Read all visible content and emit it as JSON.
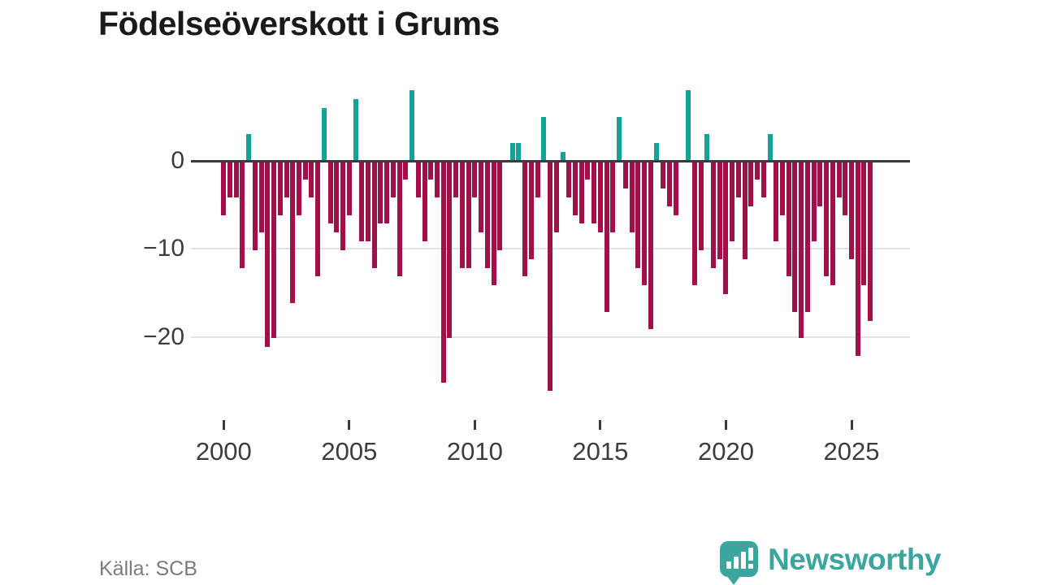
{
  "title": "Födelseöverskott i Grums",
  "source": "Källa: SCB",
  "branding": {
    "name": "Newsworthy"
  },
  "colors": {
    "positive": "#16a29a",
    "negative": "#a11048",
    "zero_line": "#3b3b3b",
    "gridline": "#e2e2e2",
    "axis_text": "#3c3c3c",
    "title_text": "#1a1a1a",
    "source_text": "#7b7b7b",
    "brand_teal": "#3aa69d"
  },
  "chart_data": {
    "type": "bar",
    "title": "Födelseöverskott i Grums",
    "xlabel": "",
    "ylabel": "",
    "x_unit": "quarter",
    "grid": "horizontal",
    "ylim": [
      -27,
      9
    ],
    "categories": [
      "2000K1",
      "2000K2",
      "2000K3",
      "2000K4",
      "2001K1",
      "2001K2",
      "2001K3",
      "2001K4",
      "2002K1",
      "2002K2",
      "2002K3",
      "2002K4",
      "2003K1",
      "2003K2",
      "2003K3",
      "2003K4",
      "2004K1",
      "2004K2",
      "2004K3",
      "2004K4",
      "2005K1",
      "2005K2",
      "2005K3",
      "2005K4",
      "2006K1",
      "2006K2",
      "2006K3",
      "2006K4",
      "2007K1",
      "2007K2",
      "2007K3",
      "2007K4",
      "2008K1",
      "2008K2",
      "2008K3",
      "2008K4",
      "2009K1",
      "2009K2",
      "2009K3",
      "2009K4",
      "2010K1",
      "2010K2",
      "2010K3",
      "2010K4",
      "2011K1",
      "2011K2",
      "2011K3",
      "2011K4",
      "2012K1",
      "2012K2",
      "2012K3",
      "2012K4",
      "2013K1",
      "2013K2",
      "2013K3",
      "2013K4",
      "2014K1",
      "2014K2",
      "2014K3",
      "2014K4",
      "2015K1",
      "2015K2",
      "2015K3",
      "2015K4",
      "2016K1",
      "2016K2",
      "2016K3",
      "2016K4",
      "2017K1",
      "2017K2",
      "2017K3",
      "2017K4",
      "2018K1",
      "2018K2",
      "2018K3",
      "2018K4",
      "2019K1",
      "2019K2",
      "2019K3",
      "2019K4",
      "2020K1",
      "2020K2",
      "2020K3",
      "2020K4",
      "2021K1",
      "2021K2",
      "2021K3",
      "2021K4",
      "2022K1",
      "2022K2",
      "2022K3",
      "2022K4",
      "2023K1",
      "2023K2",
      "2023K3",
      "2023K4",
      "2024K1",
      "2024K2",
      "2024K3",
      "2024K4",
      "2025K1",
      "2025K2",
      "2025K3",
      "2025K4"
    ],
    "values": [
      -6,
      -4,
      -4,
      -12,
      3,
      -10,
      -8,
      -21,
      -20,
      -6,
      -4,
      -16,
      -6,
      -2,
      -4,
      -13,
      6,
      -7,
      -8,
      -10,
      -6,
      7,
      -9,
      -9,
      -12,
      -7,
      -7,
      -4,
      -13,
      -2,
      8,
      -4,
      -9,
      -2,
      -4,
      -25,
      -20,
      -4,
      -12,
      -12,
      -4,
      -8,
      -12,
      -14,
      -10,
      0,
      2,
      2,
      -13,
      -11,
      -4,
      5,
      -26,
      -8,
      1,
      -4,
      -6,
      -7,
      -2,
      -7,
      -8,
      -17,
      -8,
      5,
      -3,
      -8,
      -12,
      -14,
      -19,
      2,
      -3,
      -5,
      -6,
      0,
      8,
      -14,
      -10,
      3,
      -12,
      -11,
      -15,
      -9,
      -4,
      -11,
      -5,
      -2,
      -4,
      3,
      -9,
      -6,
      -13,
      -17,
      -20,
      -17,
      -9,
      -5,
      -13,
      -14,
      -4,
      -6,
      -11,
      -22,
      -14,
      -18
    ],
    "yticks": [
      {
        "label": "0",
        "value": 0
      },
      {
        "label": "−10",
        "value": -10
      },
      {
        "label": "−20",
        "value": -20
      }
    ],
    "xticks": [
      {
        "label": "2000",
        "quarter_index": 0
      },
      {
        "label": "2005",
        "quarter_index": 20
      },
      {
        "label": "2010",
        "quarter_index": 40
      },
      {
        "label": "2015",
        "quarter_index": 60
      },
      {
        "label": "2020",
        "quarter_index": 80
      },
      {
        "label": "2025",
        "quarter_index": 100
      }
    ],
    "legend": "none"
  }
}
